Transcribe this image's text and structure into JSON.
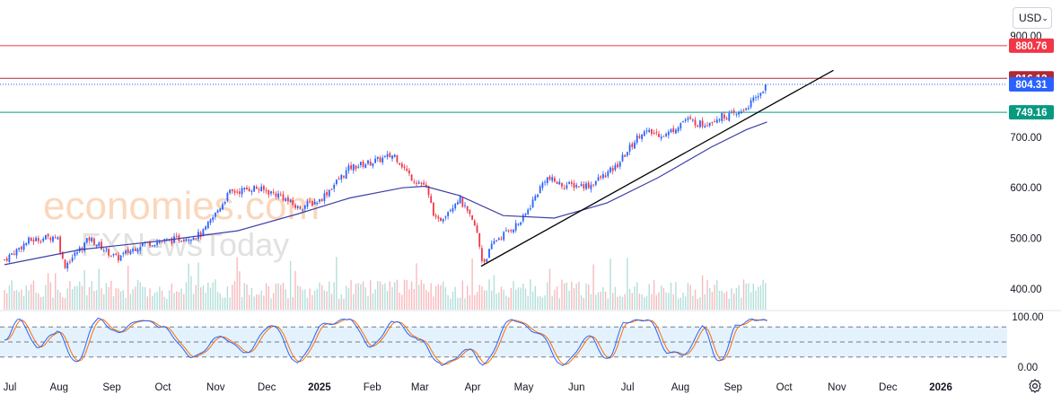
{
  "toolbar": {
    "currency": "USD",
    "currency_icon": "chevron-down-icon",
    "settings_icon": "gear-icon"
  },
  "watermark": {
    "brand": "economies.com",
    "sub": "FXNewsToday"
  },
  "colors": {
    "up": "#2962ff",
    "down": "#f23645",
    "ma": "#3f3fa8",
    "trend": "#000000",
    "resistance_1": "#f23645",
    "resistance_2": "#b22833",
    "support": "#089981",
    "stoch_k": "#2962ff",
    "stoch_d": "#ff6d00",
    "stoch_band": "#e3f2fd"
  },
  "chart_data": [
    {
      "type": "candlestick",
      "title": "",
      "x_ticks": [
        "Jul",
        "Aug",
        "Sep",
        "Oct",
        "Nov",
        "Dec",
        "2025",
        "Feb",
        "Mar",
        "Apr",
        "May",
        "Jun",
        "Jul",
        "Aug",
        "Sep",
        "Oct",
        "Nov",
        "Dec",
        "2026"
      ],
      "y_ticks": [
        400,
        500,
        600,
        700,
        800,
        900
      ],
      "y_tick_labels": [
        "400.00",
        "500.00",
        "600.00",
        "700.00",
        "800.00",
        "900.00"
      ],
      "ylim": [
        380,
        905
      ],
      "price_lines": [
        {
          "value": 880.76,
          "label": "880.76",
          "role": "resistance_1"
        },
        {
          "value": 816.12,
          "label": "816.12",
          "role": "resistance_2"
        },
        {
          "value": 749.16,
          "label": "749.16",
          "role": "support"
        }
      ],
      "last_price": {
        "value": 804.31,
        "label": "804.31"
      },
      "trendline": {
        "from": {
          "x": "2025-04-07",
          "y": 445
        },
        "to": {
          "x": "2025-10-31",
          "y": 832
        }
      },
      "close_series": [
        [
          "2024-07-01",
          458
        ],
        [
          "2024-07-15",
          495
        ],
        [
          "2024-08-01",
          505
        ],
        [
          "2024-08-05",
          445
        ],
        [
          "2024-08-20",
          500
        ],
        [
          "2024-09-05",
          460
        ],
        [
          "2024-09-20",
          490
        ],
        [
          "2024-10-05",
          495
        ],
        [
          "2024-10-25",
          508
        ],
        [
          "2024-11-10",
          590
        ],
        [
          "2024-11-25",
          600
        ],
        [
          "2024-12-10",
          585
        ],
        [
          "2024-12-20",
          560
        ],
        [
          "2025-01-02",
          575
        ],
        [
          "2025-01-20",
          640
        ],
        [
          "2025-02-01",
          650
        ],
        [
          "2025-02-15",
          665
        ],
        [
          "2025-02-25",
          620
        ],
        [
          "2025-03-05",
          605
        ],
        [
          "2025-03-12",
          530
        ],
        [
          "2025-03-25",
          580
        ],
        [
          "2025-04-04",
          520
        ],
        [
          "2025-04-08",
          450
        ],
        [
          "2025-04-15",
          495
        ],
        [
          "2025-05-01",
          535
        ],
        [
          "2025-05-15",
          620
        ],
        [
          "2025-05-25",
          605
        ],
        [
          "2025-06-10",
          605
        ],
        [
          "2025-06-25",
          640
        ],
        [
          "2025-07-10",
          710
        ],
        [
          "2025-07-25",
          705
        ],
        [
          "2025-08-05",
          735
        ],
        [
          "2025-08-15",
          725
        ],
        [
          "2025-08-25",
          740
        ],
        [
          "2025-09-05",
          745
        ],
        [
          "2025-09-15",
          775
        ],
        [
          "2025-09-22",
          804
        ]
      ],
      "moving_average": [
        [
          "2024-07-01",
          448
        ],
        [
          "2024-08-15",
          478
        ],
        [
          "2024-10-01",
          495
        ],
        [
          "2024-11-15",
          515
        ],
        [
          "2024-12-20",
          548
        ],
        [
          "2025-01-20",
          580
        ],
        [
          "2025-02-20",
          600
        ],
        [
          "2025-03-05",
          603
        ],
        [
          "2025-03-25",
          585
        ],
        [
          "2025-04-20",
          545
        ],
        [
          "2025-05-20",
          540
        ],
        [
          "2025-06-20",
          570
        ],
        [
          "2025-07-20",
          620
        ],
        [
          "2025-08-20",
          680
        ],
        [
          "2025-09-10",
          715
        ],
        [
          "2025-09-22",
          730
        ]
      ]
    },
    {
      "type": "stochastic",
      "y_ticks": [
        0,
        100
      ],
      "y_tick_labels": [
        "0.00",
        "100.00"
      ],
      "ylim": [
        0,
        100
      ],
      "band": [
        20,
        80
      ],
      "k_series": [
        [
          "2024-07-01",
          55
        ],
        [
          "2024-07-10",
          95
        ],
        [
          "2024-07-20",
          40
        ],
        [
          "2024-08-01",
          70
        ],
        [
          "2024-08-12",
          10
        ],
        [
          "2024-08-25",
          95
        ],
        [
          "2024-09-05",
          70
        ],
        [
          "2024-09-20",
          95
        ],
        [
          "2024-10-01",
          80
        ],
        [
          "2024-10-20",
          20
        ],
        [
          "2024-11-05",
          60
        ],
        [
          "2024-11-20",
          30
        ],
        [
          "2024-12-05",
          85
        ],
        [
          "2024-12-20",
          10
        ],
        [
          "2025-01-05",
          85
        ],
        [
          "2025-01-20",
          95
        ],
        [
          "2025-02-01",
          40
        ],
        [
          "2025-02-15",
          90
        ],
        [
          "2025-03-01",
          55
        ],
        [
          "2025-03-15",
          5
        ],
        [
          "2025-04-01",
          35
        ],
        [
          "2025-04-08",
          5
        ],
        [
          "2025-04-25",
          95
        ],
        [
          "2025-05-10",
          70
        ],
        [
          "2025-05-25",
          5
        ],
        [
          "2025-06-10",
          60
        ],
        [
          "2025-06-20",
          15
        ],
        [
          "2025-07-01",
          90
        ],
        [
          "2025-07-15",
          95
        ],
        [
          "2025-07-25",
          30
        ],
        [
          "2025-08-05",
          25
        ],
        [
          "2025-08-15",
          80
        ],
        [
          "2025-08-25",
          10
        ],
        [
          "2025-09-05",
          85
        ],
        [
          "2025-09-15",
          95
        ],
        [
          "2025-09-22",
          92
        ]
      ]
    }
  ]
}
